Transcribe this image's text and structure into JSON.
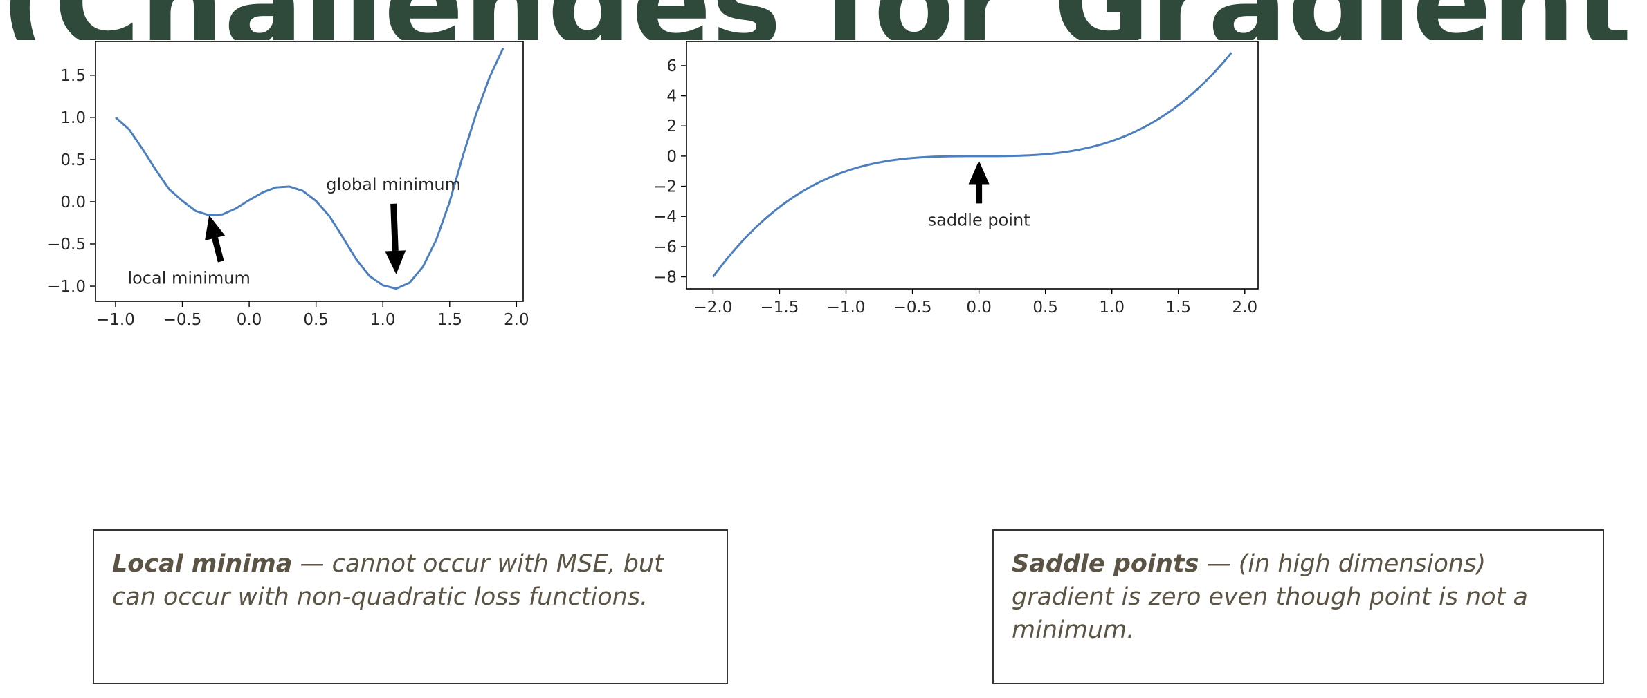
{
  "title": {
    "text": "(Challenges for Gradient Descent)",
    "color": "#2f4a3b"
  },
  "chart_data": [
    {
      "type": "line",
      "title": "",
      "xlabel": "",
      "ylabel": "",
      "xlim": [
        -1.15,
        2.05
      ],
      "ylim": [
        -1.18,
        1.9
      ],
      "xticks": [
        -1.0,
        -0.5,
        0.0,
        0.5,
        1.0,
        1.5,
        2.0
      ],
      "xtick_labels": [
        "−1.0",
        "−0.5",
        "0.0",
        "0.5",
        "1.0",
        "1.5",
        "2.0"
      ],
      "yticks": [
        -1.0,
        -0.5,
        0.0,
        0.5,
        1.0,
        1.5
      ],
      "ytick_labels": [
        "−1.0",
        "−0.5",
        "0.0",
        "0.5",
        "1.0",
        "1.5"
      ],
      "grid": false,
      "line_color": "#4c7fbf",
      "series": [
        {
          "x": [
            -1.0,
            -0.9,
            -0.8,
            -0.7,
            -0.6,
            -0.5,
            -0.4,
            -0.3,
            -0.2,
            -0.1,
            0.0,
            0.1,
            0.2,
            0.3,
            0.4,
            0.5,
            0.6,
            0.7,
            0.8,
            0.9,
            1.0,
            1.1,
            1.2,
            1.3,
            1.4,
            1.5,
            1.6,
            1.7,
            1.8,
            1.9
          ],
          "values": [
            1.0,
            0.86,
            0.63,
            0.38,
            0.15,
            0.01,
            -0.11,
            -0.16,
            -0.15,
            -0.08,
            0.02,
            0.11,
            0.17,
            0.18,
            0.13,
            0.01,
            -0.17,
            -0.42,
            -0.68,
            -0.88,
            -0.99,
            -1.03,
            -0.96,
            -0.77,
            -0.45,
            0.0,
            0.55,
            1.05,
            1.48,
            1.82
          ]
        }
      ],
      "annotations": [
        {
          "text": "local minimum",
          "xy": [
            -0.3,
            -0.16
          ],
          "text_xy": [
            -0.45,
            -0.97
          ]
        },
        {
          "text": "global minimum",
          "xy": [
            1.1,
            -0.86
          ],
          "text_xy": [
            1.08,
            0.14
          ]
        }
      ]
    },
    {
      "type": "line",
      "title": "",
      "xlabel": "",
      "ylabel": "",
      "xlim": [
        -2.2,
        2.1
      ],
      "ylim": [
        -8.8,
        7.6
      ],
      "xticks": [
        -2.0,
        -1.5,
        -1.0,
        -0.5,
        0.0,
        0.5,
        1.0,
        1.5,
        2.0
      ],
      "xtick_labels": [
        "−2.0",
        "−1.5",
        "−1.0",
        "−0.5",
        "0.0",
        "0.5",
        "1.0",
        "1.5",
        "2.0"
      ],
      "yticks": [
        -8,
        -6,
        -4,
        -2,
        0,
        2,
        4,
        6
      ],
      "ytick_labels": [
        "−8",
        "−6",
        "−4",
        "−2",
        "0",
        "2",
        "4",
        "6"
      ],
      "grid": false,
      "line_color": "#4c7fbf",
      "series": [
        {
          "function": "x^3",
          "x_range": [
            -2.0,
            1.9
          ]
        }
      ],
      "annotations": [
        {
          "text": "saddle point",
          "xy": [
            0.0,
            -0.3
          ],
          "text_xy": [
            0.0,
            -4.6
          ]
        }
      ]
    }
  ],
  "captions": [
    {
      "bold": "Local minima",
      "rest": " — cannot occur with MSE, but can occur with non-quadratic loss functions."
    },
    {
      "bold": "Saddle points",
      "rest": " — (in high dimensions) gradient is zero even though point is not a minimum."
    }
  ]
}
